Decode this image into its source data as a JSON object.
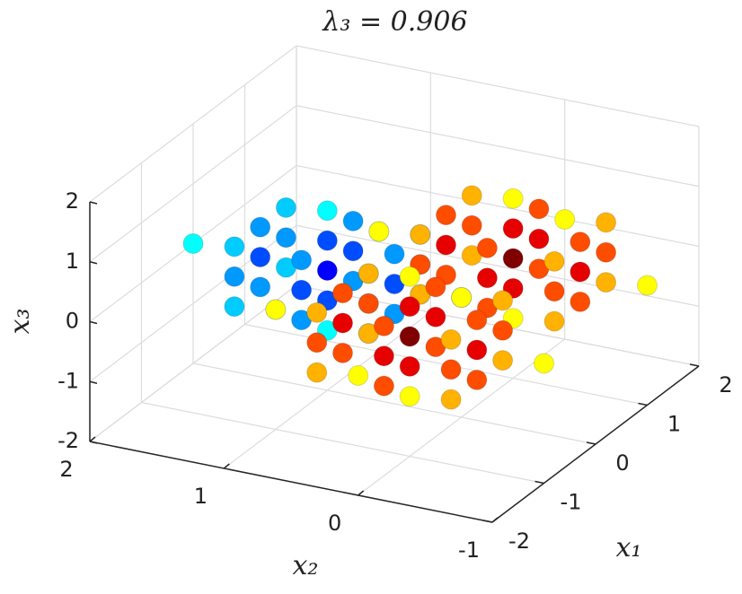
{
  "chart_data": {
    "type": "scatter3d",
    "title": "λ₃ = 0.906",
    "xlabel": "x₁",
    "ylabel": "x₂",
    "zlabel": "x₃",
    "xlim": [
      -2,
      2
    ],
    "ylim": [
      -1,
      2
    ],
    "zlim": [
      -2,
      2
    ],
    "xticks": [
      -2,
      -1,
      0,
      1,
      2
    ],
    "yticks": [
      -1,
      0,
      1,
      2
    ],
    "zticks": [
      -2,
      -1,
      0,
      1,
      2
    ],
    "clim": [
      -0.2,
      0.2
    ],
    "colormap": "jet",
    "grid": true,
    "series": [
      {
        "x": [
          0,
          0.5,
          -0.5,
          0,
          0,
          0,
          0,
          1,
          -1,
          0,
          0,
          0,
          0,
          0.5,
          0.5,
          -0.5,
          -0.5,
          0.5,
          0.5,
          -0.5,
          -0.5,
          0,
          0,
          0,
          0,
          0.5,
          0.5,
          0.5,
          0.5,
          -0.5,
          -0.5,
          -0.5,
          -0.5
        ],
        "y": [
          1,
          1,
          1,
          1.5,
          0.5,
          1,
          1,
          1,
          1,
          2,
          0,
          1,
          1,
          1.5,
          0.5,
          1.5,
          0.5,
          1,
          1,
          1,
          1,
          1.5,
          1.5,
          0.5,
          0.5,
          1.5,
          1.5,
          0.5,
          0.5,
          1.5,
          1.5,
          0.5,
          0.5
        ],
        "z": [
          0,
          0,
          0,
          0,
          0,
          0.5,
          -0.5,
          0,
          0,
          0,
          0,
          1,
          -1,
          0,
          0,
          0,
          0,
          0.5,
          -0.5,
          0.5,
          -0.5,
          0.5,
          -0.5,
          0.5,
          -0.5,
          0.5,
          -0.5,
          0.5,
          -0.5,
          0.5,
          -0.5,
          0.5,
          -0.5
        ],
        "c": [
          -0.15,
          -0.12,
          -0.12,
          -0.12,
          -0.12,
          -0.12,
          -0.12,
          -0.05,
          -0.05,
          -0.05,
          -0.05,
          -0.05,
          -0.05,
          -0.09,
          -0.09,
          -0.09,
          -0.09,
          -0.09,
          -0.09,
          -0.09,
          -0.09,
          -0.09,
          -0.09,
          -0.09,
          -0.09,
          -0.07,
          -0.07,
          -0.07,
          -0.07,
          -0.07,
          -0.07,
          -0.07,
          -0.07
        ]
      },
      {
        "x": [
          -1,
          -0.5,
          -1.5,
          -1,
          -1,
          -1,
          -1,
          0,
          -2,
          -1,
          -1,
          -1,
          -1,
          -0.5,
          -0.5,
          -1.5,
          -1.5,
          -0.5,
          -0.5,
          -1.5,
          -1.5,
          -1,
          -1,
          -1,
          -1,
          -0.5,
          -0.5,
          -0.5,
          -0.5,
          -1.5,
          -1.5,
          -1.5,
          -1.5
        ],
        "y": [
          0,
          0,
          0,
          0.5,
          -0.5,
          0,
          0,
          0,
          0,
          1,
          -1,
          0,
          0,
          0.5,
          -0.5,
          0.5,
          -0.5,
          0,
          0,
          0,
          0,
          0.5,
          0.5,
          -0.5,
          -0.5,
          0.5,
          0.5,
          -0.5,
          -0.5,
          0.5,
          0.5,
          -0.5,
          -0.5
        ],
        "z": [
          0,
          0,
          0,
          0,
          0,
          0.5,
          -0.5,
          0,
          0,
          0,
          0,
          1,
          -1,
          0,
          0,
          0,
          0,
          0.5,
          -0.5,
          0.5,
          -0.5,
          0.5,
          -0.5,
          0.5,
          -0.5,
          0.5,
          -0.5,
          0.5,
          -0.5,
          0.5,
          -0.5,
          0.5,
          -0.5
        ],
        "c": [
          0.2,
          0.16,
          0.16,
          0.16,
          0.16,
          0.16,
          0.16,
          0.05,
          0.05,
          0.05,
          0.05,
          0.05,
          0.05,
          0.12,
          0.12,
          0.12,
          0.12,
          0.12,
          0.12,
          0.12,
          0.12,
          0.12,
          0.12,
          0.12,
          0.12,
          0.08,
          0.08,
          0.08,
          0.08,
          0.08,
          0.08,
          0.08,
          0.08
        ]
      },
      {
        "x": [
          1,
          1.5,
          0.5,
          1,
          1,
          1,
          1,
          2,
          0,
          1,
          1,
          1,
          1,
          1.5,
          1.5,
          0.5,
          0.5,
          1.5,
          1.5,
          0.5,
          0.5,
          1,
          1,
          1,
          1,
          1.5,
          1.5,
          1.5,
          1.5,
          0.5,
          0.5,
          0.5,
          0.5
        ],
        "y": [
          0,
          0,
          0,
          0.5,
          -0.5,
          0,
          0,
          0,
          0,
          1,
          -1,
          0,
          0,
          0.5,
          -0.5,
          0.5,
          -0.5,
          0,
          0,
          0,
          0,
          0.5,
          0.5,
          -0.5,
          -0.5,
          0.5,
          0.5,
          -0.5,
          -0.5,
          0.5,
          0.5,
          -0.5,
          -0.5
        ],
        "z": [
          0,
          0,
          0,
          0,
          0,
          0.5,
          -0.5,
          0,
          0,
          0,
          0,
          1,
          -1,
          0,
          0,
          0,
          0,
          0.5,
          -0.5,
          0.5,
          -0.5,
          0.5,
          -0.5,
          0.5,
          -0.5,
          0.5,
          -0.5,
          0.5,
          -0.5,
          0.5,
          -0.5,
          0.5,
          -0.5
        ],
        "c": [
          0.2,
          0.16,
          0.16,
          0.16,
          0.16,
          0.16,
          0.16,
          0.05,
          0.05,
          0.05,
          0.05,
          0.05,
          0.05,
          0.12,
          0.12,
          0.12,
          0.12,
          0.12,
          0.12,
          0.12,
          0.12,
          0.12,
          0.12,
          0.12,
          0.12,
          0.08,
          0.08,
          0.08,
          0.08,
          0.08,
          0.08,
          0.08,
          0.08
        ]
      }
    ]
  }
}
